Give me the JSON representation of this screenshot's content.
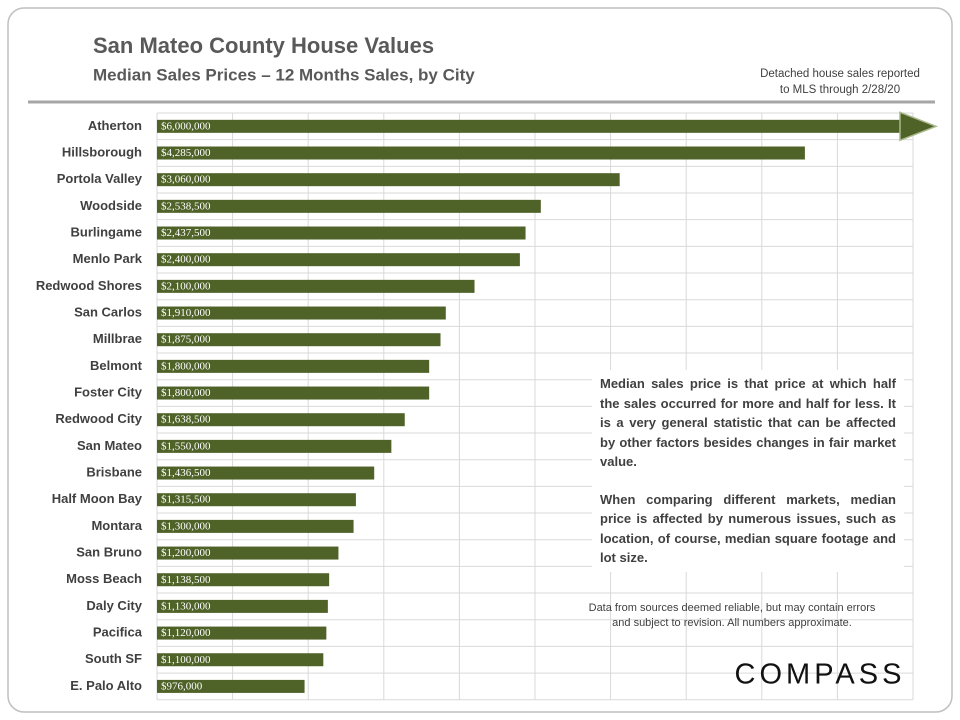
{
  "chart_data": {
    "type": "barh",
    "title": "San Mateo County House Values",
    "subtitle": "Median Sales Prices – 12 Months Sales, by City",
    "note": [
      "Detached house sales reported",
      "to MLS through 2/28/20"
    ],
    "categories": [
      "Atherton",
      "Hillsborough",
      "Portola Valley",
      "Woodside",
      "Burlingame",
      "Menlo Park",
      "Redwood Shores",
      "San Carlos",
      "Millbrae",
      "Belmont",
      "Foster City",
      "Redwood City",
      "San Mateo",
      "Brisbane",
      "Half Moon Bay",
      "Montara",
      "San Bruno",
      "Moss Beach",
      "Daly City",
      "Pacifica",
      "South SF",
      "E. Palo Alto"
    ],
    "values": [
      6000000,
      4285000,
      3060000,
      2538500,
      2437500,
      2400000,
      2100000,
      1910000,
      1875000,
      1800000,
      1800000,
      1638500,
      1550000,
      1436500,
      1315500,
      1300000,
      1200000,
      1138500,
      1130000,
      1120000,
      1100000,
      976000
    ],
    "value_labels": [
      "$6,000,000",
      "$4,285,000",
      "$3,060,000",
      "$2,538,500",
      "$2,437,500",
      "$2,400,000",
      "$2,100,000",
      "$1,910,000",
      "$1,875,000",
      "$1,800,000",
      "$1,800,000",
      "$1,638,500",
      "$1,550,000",
      "$1,436,500",
      "$1,315,500",
      "$1,300,000",
      "$1,200,000",
      "$1,138,500",
      "$1,130,000",
      "$1,120,000",
      "$1,100,000",
      "$976,000"
    ],
    "color": "#4f6228",
    "xlim": [
      0,
      5000000
    ],
    "xticks": [
      0,
      500000,
      1000000,
      1500000,
      2000000,
      2500000,
      3000000,
      3500000,
      4000000,
      4500000,
      5000000
    ],
    "grid": true,
    "annotations": [
      "Median sales price is that price at which half the sales occurred for more and half for less. It is a very general statistic that can be affected by other factors besides changes in fair market value.",
      "When comparing different markets, median price is affected by numerous issues, such as location, of course, median square footage and lot size."
    ],
    "footnote": [
      "Data from sources deemed reliable, but may contain errors",
      "and subject to revision. All numbers approximate."
    ],
    "logo": "COMPASS"
  }
}
